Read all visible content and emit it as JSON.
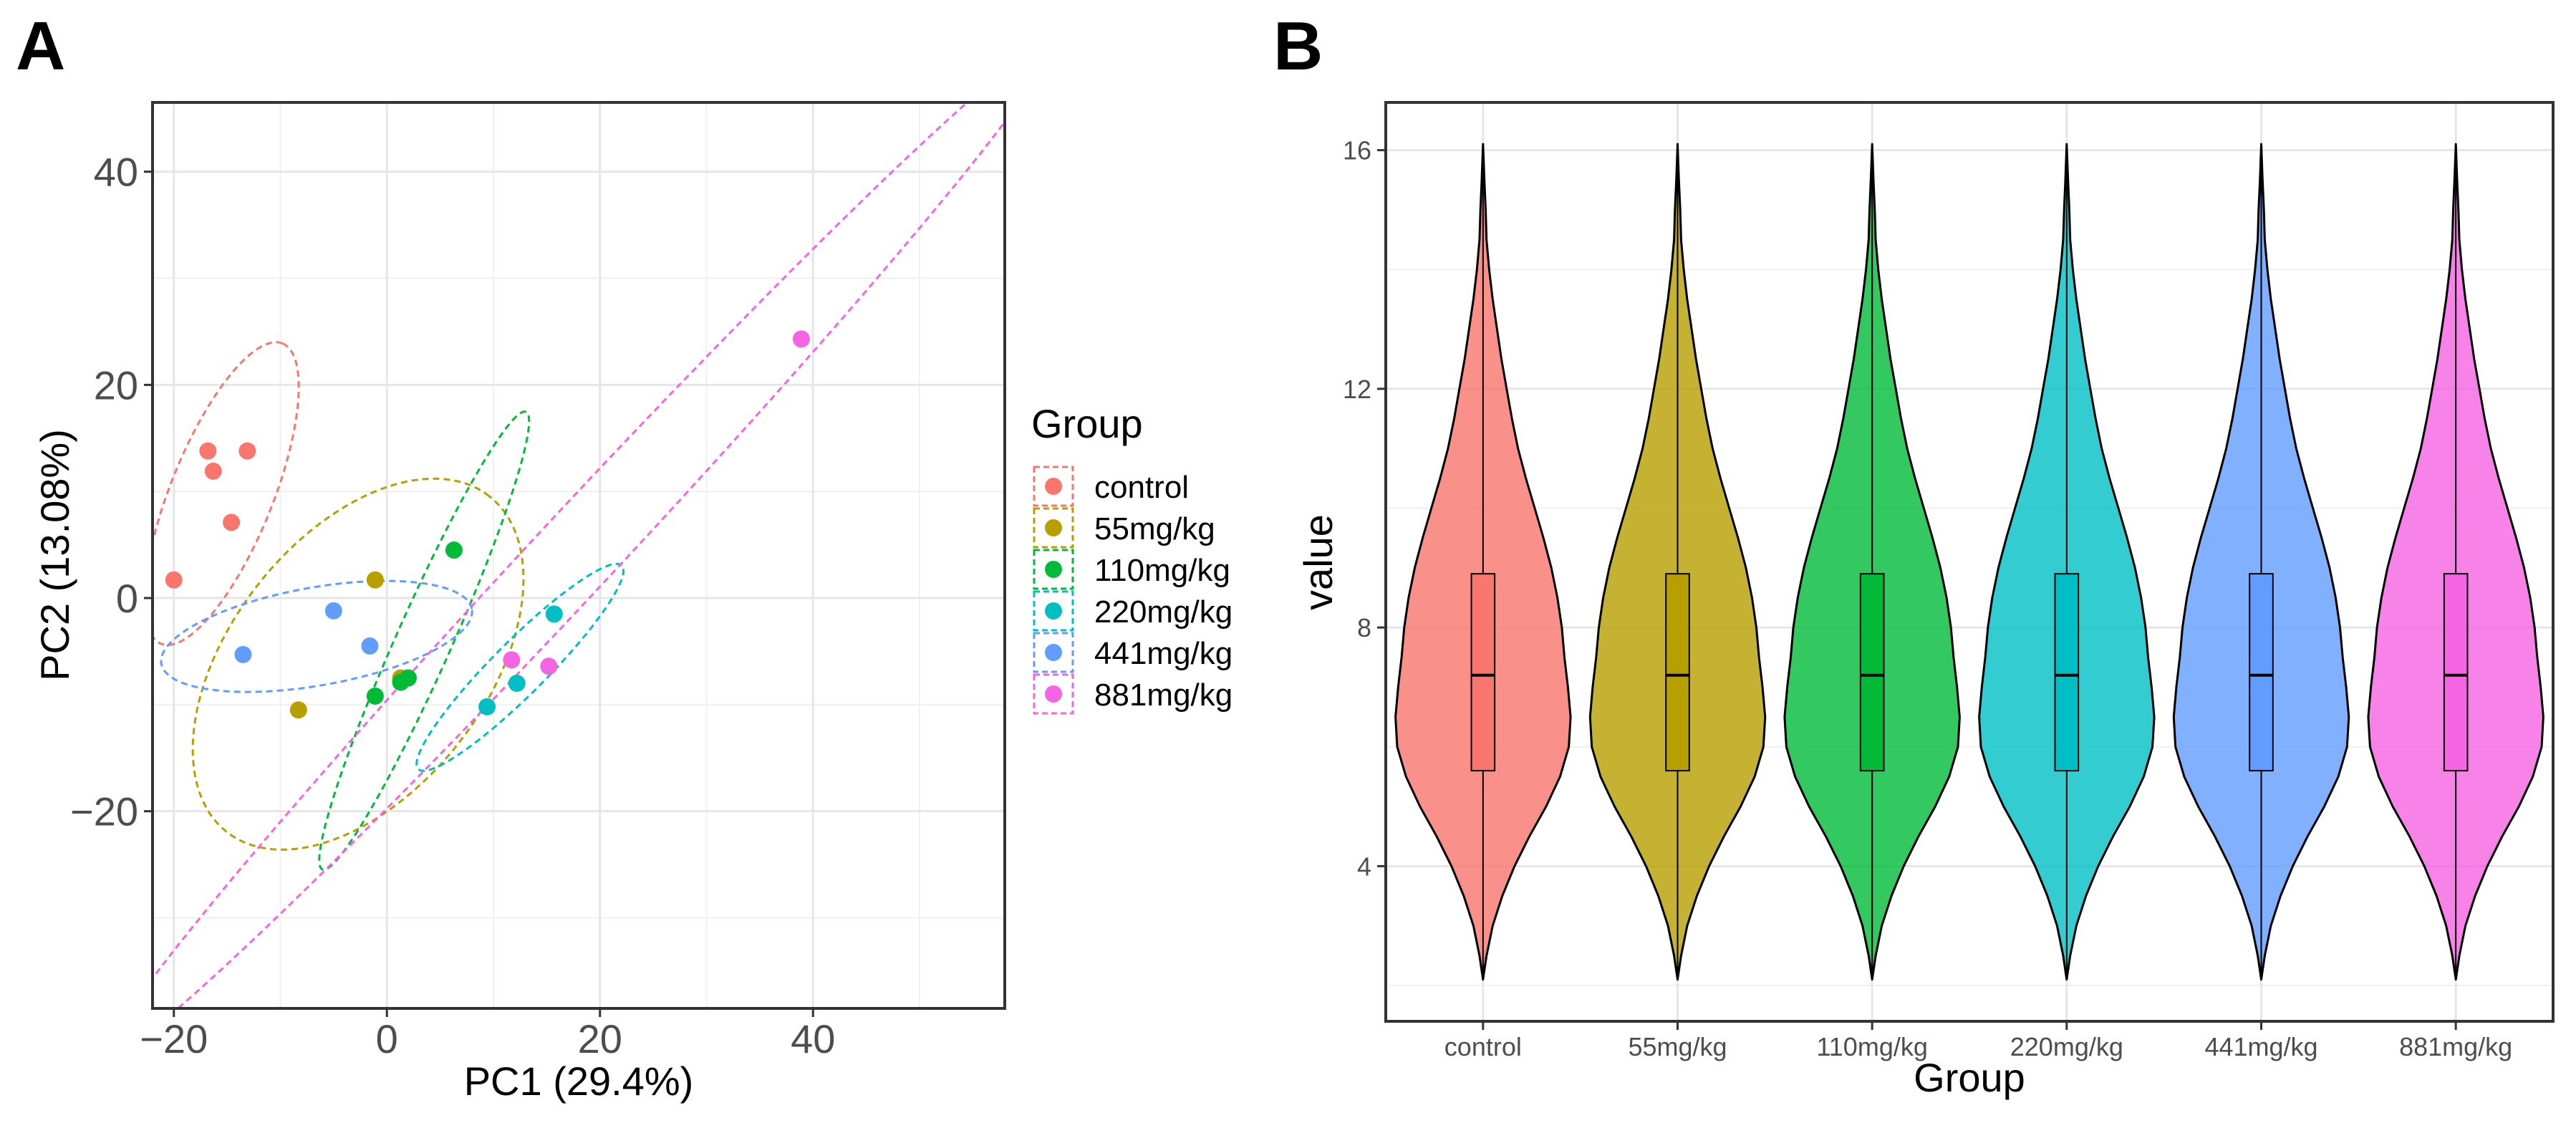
{
  "chart_data": [
    {
      "panel": "A",
      "type": "scatter",
      "xlabel": "PC1 (29.4%)",
      "ylabel": "PC2 (13.08%)",
      "xlim": [
        -22,
        58
      ],
      "ylim": [
        -38.5,
        46.5
      ],
      "xticks": [
        -20,
        0,
        20,
        40
      ],
      "yticks": [
        -20,
        0,
        20,
        40
      ],
      "grid": true,
      "legend": {
        "title": "Group",
        "position": "right",
        "entries": [
          "control",
          "55mg/kg",
          "110mg/kg",
          "220mg/kg",
          "441mg/kg",
          "881mg/kg"
        ]
      },
      "series": [
        {
          "name": "control",
          "color": "#F8766D",
          "points": [
            [
              -20,
              1.7
            ],
            [
              -16.8,
              13.8
            ],
            [
              -16.3,
              11.9
            ],
            [
              -13.1,
              13.8
            ],
            [
              -14.6,
              7.1
            ]
          ],
          "ellipse": {
            "cx": -15.5,
            "cy": 9.8,
            "rx": 15.2,
            "ry": 4.8,
            "angle": 68
          }
        },
        {
          "name": "55mg/kg",
          "color": "#B79F00",
          "points": [
            [
              -1.1,
              1.7
            ],
            [
              -8.3,
              -10.5
            ],
            [
              1.3,
              -7.5
            ]
          ],
          "ellipse": {
            "cx": -2.7,
            "cy": -6.2,
            "rx": 20,
            "ry": 12,
            "angle": 52
          }
        },
        {
          "name": "110mg/kg",
          "color": "#00BA38",
          "points": [
            [
              6.3,
              4.5
            ],
            [
              1.3,
              -7.9
            ],
            [
              2,
              -7.5
            ],
            [
              -1.1,
              -9.2
            ]
          ],
          "ellipse": {
            "cx": 3.5,
            "cy": -4,
            "rx": 23.5,
            "ry": 2.6,
            "angle": 66
          }
        },
        {
          "name": "220mg/kg",
          "color": "#00BFC4",
          "points": [
            [
              15.7,
              -1.5
            ],
            [
              12.2,
              -8
            ],
            [
              9.4,
              -10.2
            ]
          ],
          "ellipse": {
            "cx": 12.5,
            "cy": -6.5,
            "rx": 13.5,
            "ry": 2.5,
            "angle": 45
          }
        },
        {
          "name": "441mg/kg",
          "color": "#619CFF",
          "points": [
            [
              -13.5,
              -5.3
            ],
            [
              -5,
              -1.2
            ],
            [
              -1.6,
              -4.5
            ]
          ],
          "ellipse": {
            "cx": -6.6,
            "cy": -3.6,
            "rx": 14.8,
            "ry": 4.6,
            "angle": 10
          }
        },
        {
          "name": "881mg/kg",
          "color": "#F564E3",
          "points": [
            [
              38.9,
              24.3
            ],
            [
              15.2,
              -6.4
            ],
            [
              11.7,
              -5.8
            ]
          ],
          "ellipse": {
            "cx": 18,
            "cy": 4.5,
            "rx": 65,
            "ry": 3.8,
            "angle": 47
          }
        }
      ]
    },
    {
      "panel": "B",
      "type": "violin",
      "xlabel": "Group",
      "ylabel": "value",
      "ylim": [
        1.4,
        16.8
      ],
      "yticks": [
        4,
        8,
        12,
        16
      ],
      "grid": true,
      "categories": [
        "control",
        "55mg/kg",
        "110mg/kg",
        "220mg/kg",
        "441mg/kg",
        "881mg/kg"
      ],
      "colors": [
        "#F8766D",
        "#B79F00",
        "#00BA38",
        "#00BFC4",
        "#619CFF",
        "#F564E3"
      ],
      "box": {
        "q1": 5.6,
        "median": 7.2,
        "q3": 8.9,
        "whisker_low": 2.1,
        "whisker_high": 16.1
      },
      "density_profile": [
        [
          2.1,
          0.0
        ],
        [
          2.5,
          0.04
        ],
        [
          3.0,
          0.11
        ],
        [
          3.5,
          0.22
        ],
        [
          4.0,
          0.36
        ],
        [
          4.5,
          0.53
        ],
        [
          5.0,
          0.72
        ],
        [
          5.5,
          0.88
        ],
        [
          6.0,
          0.98
        ],
        [
          6.5,
          1.0
        ],
        [
          7.0,
          0.97
        ],
        [
          7.5,
          0.93
        ],
        [
          8.0,
          0.9
        ],
        [
          8.5,
          0.85
        ],
        [
          9.0,
          0.78
        ],
        [
          9.5,
          0.69
        ],
        [
          10.0,
          0.59
        ],
        [
          10.5,
          0.49
        ],
        [
          11.0,
          0.4
        ],
        [
          11.5,
          0.33
        ],
        [
          12.0,
          0.27
        ],
        [
          12.5,
          0.21
        ],
        [
          13.0,
          0.16
        ],
        [
          13.5,
          0.11
        ],
        [
          14.0,
          0.07
        ],
        [
          14.5,
          0.04
        ],
        [
          15.0,
          0.03
        ],
        [
          15.5,
          0.015
        ],
        [
          16.1,
          0.0
        ]
      ]
    }
  ],
  "panel_labels": {
    "a": "A",
    "b": "B"
  }
}
